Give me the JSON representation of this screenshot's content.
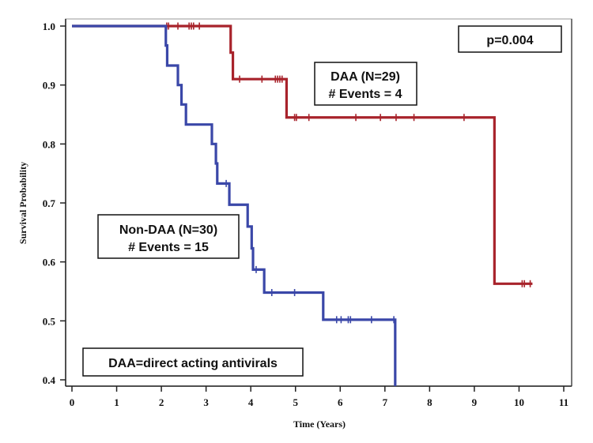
{
  "chart_data": {
    "type": "line",
    "subtype": "kaplan-meier-step",
    "xlabel": "Time (Years)",
    "ylabel": "Survival Probability",
    "xlim": [
      0,
      11
    ],
    "ylim": [
      0.4,
      1.0
    ],
    "x_ticks": [
      "0",
      "1",
      "2",
      "3",
      "4",
      "5",
      "6",
      "7",
      "8",
      "9",
      "10",
      "11"
    ],
    "y_ticks": [
      "0.4",
      "0.5",
      "0.6",
      "0.7",
      "0.8",
      "0.9",
      "1.0"
    ],
    "grid": false,
    "series": [
      {
        "name": "DAA",
        "color": "#A8232B",
        "steps": [
          [
            0,
            1.0
          ],
          [
            3.55,
            0.955
          ],
          [
            3.6,
            0.91
          ],
          [
            4.8,
            0.845
          ],
          [
            9.45,
            0.563
          ],
          [
            10.3,
            0.563
          ]
        ],
        "censored": [
          [
            2.12,
            1.0
          ],
          [
            2.16,
            1.0
          ],
          [
            2.37,
            1.0
          ],
          [
            2.62,
            1.0
          ],
          [
            2.67,
            1.0
          ],
          [
            2.72,
            1.0
          ],
          [
            2.85,
            1.0
          ],
          [
            3.75,
            0.91
          ],
          [
            4.25,
            0.91
          ],
          [
            4.55,
            0.91
          ],
          [
            4.6,
            0.91
          ],
          [
            4.65,
            0.91
          ],
          [
            4.7,
            0.91
          ],
          [
            4.98,
            0.845
          ],
          [
            5.02,
            0.845
          ],
          [
            5.3,
            0.845
          ],
          [
            6.35,
            0.845
          ],
          [
            6.9,
            0.845
          ],
          [
            7.25,
            0.845
          ],
          [
            7.65,
            0.845
          ],
          [
            8.77,
            0.845
          ],
          [
            10.07,
            0.563
          ],
          [
            10.12,
            0.563
          ],
          [
            10.25,
            0.563
          ]
        ]
      },
      {
        "name": "Non-DAA",
        "color": "#3A47A8",
        "steps": [
          [
            0,
            1.0
          ],
          [
            2.1,
            0.967
          ],
          [
            2.13,
            0.933
          ],
          [
            2.37,
            0.9
          ],
          [
            2.45,
            0.867
          ],
          [
            2.55,
            0.833
          ],
          [
            3.13,
            0.8
          ],
          [
            3.22,
            0.767
          ],
          [
            3.25,
            0.733
          ],
          [
            3.52,
            0.697
          ],
          [
            3.93,
            0.66
          ],
          [
            4.02,
            0.623
          ],
          [
            4.05,
            0.587
          ],
          [
            4.3,
            0.548
          ],
          [
            5.62,
            0.502
          ],
          [
            7.23,
            0.38
          ]
        ],
        "censored": [
          [
            3.45,
            0.733
          ],
          [
            4.12,
            0.587
          ],
          [
            4.47,
            0.548
          ],
          [
            4.98,
            0.548
          ],
          [
            5.92,
            0.502
          ],
          [
            6.02,
            0.502
          ],
          [
            6.18,
            0.502
          ],
          [
            6.23,
            0.502
          ],
          [
            6.7,
            0.502
          ],
          [
            7.2,
            0.502
          ]
        ]
      }
    ],
    "annotations": [
      {
        "id": "pvalue",
        "lines": [
          "p=0.004"
        ]
      },
      {
        "id": "daa",
        "lines": [
          "DAA (N=29)",
          "# Events = 4"
        ]
      },
      {
        "id": "nondaa",
        "lines": [
          "Non-DAA (N=30)",
          "# Events = 15"
        ]
      },
      {
        "id": "footnote",
        "lines": [
          "DAA=direct acting antivirals"
        ]
      }
    ]
  }
}
